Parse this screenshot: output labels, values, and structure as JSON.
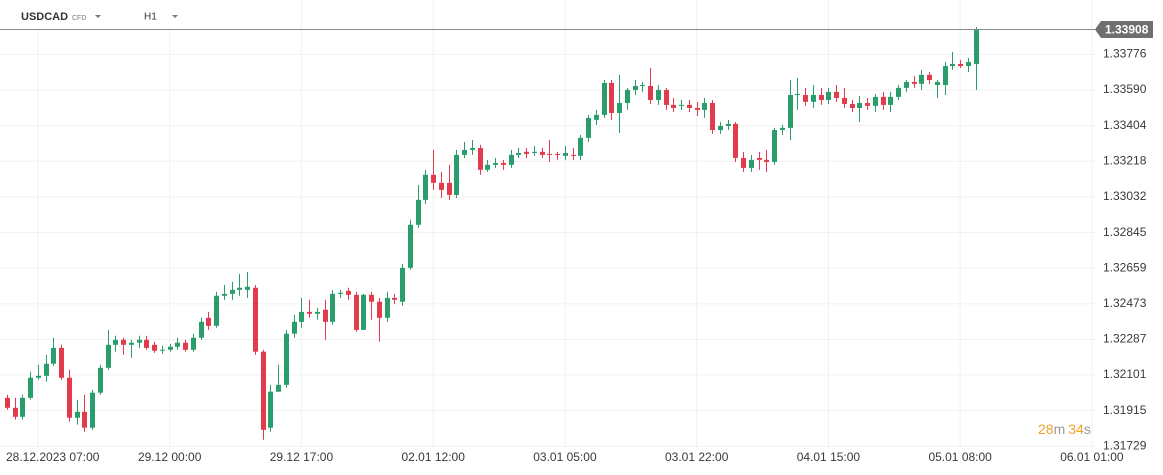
{
  "header": {
    "symbol": "USDCAD",
    "instrument_type": "CFD",
    "timeframe": "H1"
  },
  "countdown": {
    "minutes": "28",
    "minutes_unit": "m",
    "seconds": "34",
    "seconds_unit": "s"
  },
  "chart_data": {
    "type": "candlestick",
    "up_color": "#2a9d6c",
    "down_color": "#e23c4c",
    "grid": true,
    "last_price": 1.33908,
    "ylim": [
      1.3172,
      1.3406
    ],
    "yticks": [
      1.33776,
      {
        "value": 1.3359,
        "label": "1.33590"
      },
      1.33404,
      1.33218,
      1.33032,
      1.32845,
      1.32659,
      1.32473,
      1.32287,
      1.32101,
      1.31915,
      1.31729
    ],
    "xlim": [
      -0.9,
      140.4
    ],
    "xticks": [
      {
        "value": 4,
        "label": "28.12.2023  07:00"
      },
      {
        "value": 21,
        "label": "29.12  00:00"
      },
      {
        "value": 38,
        "label": "29.12  17:00"
      },
      {
        "value": 55,
        "label": "02.01  12:00"
      },
      {
        "value": 72,
        "label": "03.01  05:00"
      },
      {
        "value": 89,
        "label": "03.01  22:00"
      },
      {
        "value": 106,
        "label": "04.01  15:00"
      },
      {
        "value": 123,
        "label": "05.01  08:00"
      },
      {
        "value": 140,
        "label": "06.01  01:00"
      }
    ],
    "open": [
      1.31982,
      1.3193,
      1.31883,
      1.31982,
      1.32087,
      1.32097,
      1.3216,
      1.32243,
      1.32087,
      1.31878,
      1.31909,
      1.31826,
      1.32009,
      1.32139,
      1.32259,
      1.32285,
      1.32259,
      1.3227,
      1.32285,
      1.32259,
      1.32228,
      1.32233,
      1.32249,
      1.3227,
      1.32233,
      1.32296,
      1.324,
      1.32358,
      1.32515,
      1.32525,
      1.32546,
      1.32546,
      1.32557,
      1.32223,
      1.31826,
      1.32014,
      1.3205,
      1.32317,
      1.32379,
      1.32431,
      1.32421,
      1.32442,
      1.32379,
      1.32525,
      1.32541,
      1.3252,
      1.32337,
      1.3252,
      1.32484,
      1.324,
      1.32504,
      1.32484,
      1.32661,
      1.32886,
      1.33016,
      1.33147,
      1.33105,
      1.33105,
      1.33042,
      1.33251,
      1.33277,
      1.33287,
      1.33173,
      1.33199,
      1.33209,
      1.33199,
      1.33251,
      1.33267,
      1.33261,
      1.33267,
      1.33256,
      1.33256,
      1.33246,
      1.33251,
      1.33246,
      1.3334,
      1.33434,
      1.3346,
      1.33627,
      1.3347,
      1.33522,
      1.3359,
      1.33611,
      1.33611,
      1.33538,
      1.3359,
      1.33512,
      1.33507,
      1.33512,
      1.33496,
      1.33486,
      1.33522,
      1.33381,
      1.33402,
      1.33413,
      1.33235,
      1.33183,
      1.33235,
      1.33225,
      1.33214,
      1.33381,
      1.33392,
      1.33564,
      1.33564,
      1.33528,
      1.33564,
      1.33538,
      1.3358,
      1.33548,
      1.33517,
      1.33496,
      1.33522,
      1.33507,
      1.33554,
      1.33512,
      1.33554,
      1.33601,
      1.33632,
      1.33622,
      1.33669,
      1.33616,
      1.33616,
      1.33715,
      1.33726,
      1.33715,
      1.33726
    ],
    "high": [
      1.31998,
      1.31982,
      1.31998,
      1.32118,
      1.32155,
      1.32207,
      1.32296,
      1.32259,
      1.32129,
      1.31972,
      1.31998,
      1.32024,
      1.32155,
      1.32337,
      1.32306,
      1.32296,
      1.32285,
      1.32306,
      1.32306,
      1.32275,
      1.32254,
      1.32264,
      1.32296,
      1.32285,
      1.32317,
      1.324,
      1.32431,
      1.32536,
      1.32572,
      1.32588,
      1.3263,
      1.3264,
      1.32572,
      1.32233,
      1.3205,
      1.32155,
      1.32337,
      1.32416,
      1.32504,
      1.32494,
      1.32452,
      1.32494,
      1.32546,
      1.32546,
      1.32557,
      1.32536,
      1.32525,
      1.32536,
      1.32504,
      1.32536,
      1.32525,
      1.32682,
      1.32912,
      1.33094,
      1.33173,
      1.33277,
      1.33162,
      1.33199,
      1.33277,
      1.33319,
      1.33329,
      1.33303,
      1.33225,
      1.33235,
      1.33225,
      1.33277,
      1.33287,
      1.33287,
      1.33298,
      1.33287,
      1.33329,
      1.33267,
      1.33298,
      1.33287,
      1.33355,
      1.3346,
      1.33486,
      1.33642,
      1.33642,
      1.33669,
      1.33601,
      1.33642,
      1.33632,
      1.33705,
      1.33616,
      1.33601,
      1.33548,
      1.33538,
      1.33538,
      1.33528,
      1.33548,
      1.33538,
      1.33423,
      1.33434,
      1.33423,
      1.33267,
      1.33251,
      1.33267,
      1.33277,
      1.33392,
      1.33408,
      1.33642,
      1.33653,
      1.33601,
      1.33616,
      1.33601,
      1.33601,
      1.33616,
      1.33601,
      1.33538,
      1.33559,
      1.33548,
      1.33569,
      1.3358,
      1.3358,
      1.33616,
      1.33642,
      1.33663,
      1.33695,
      1.33684,
      1.33642,
      1.33736,
      1.33789,
      1.33747,
      1.33757,
      1.33919
    ],
    "low": [
      1.3192,
      1.31868,
      1.31868,
      1.31972,
      1.32076,
      1.32066,
      1.32149,
      1.32076,
      1.31857,
      1.31842,
      1.31805,
      1.31815,
      1.31998,
      1.32129,
      1.32223,
      1.32207,
      1.32191,
      1.32243,
      1.32233,
      1.32217,
      1.32212,
      1.32223,
      1.32233,
      1.32223,
      1.32223,
      1.32285,
      1.32337,
      1.32348,
      1.32494,
      1.32494,
      1.32515,
      1.32504,
      1.32207,
      1.31763,
      1.31805,
      1.32014,
      1.32035,
      1.32296,
      1.32348,
      1.324,
      1.3239,
      1.32285,
      1.32364,
      1.32504,
      1.32494,
      1.32327,
      1.32337,
      1.3239,
      1.32275,
      1.32379,
      1.32473,
      1.32463,
      1.32651,
      1.3287,
      1.32995,
      1.33068,
      1.33026,
      1.33016,
      1.33026,
      1.33235,
      1.33251,
      1.33147,
      1.33162,
      1.33183,
      1.33173,
      1.33183,
      1.33235,
      1.33235,
      1.33246,
      1.33235,
      1.33214,
      1.33225,
      1.33225,
      1.33225,
      1.33225,
      1.33319,
      1.33408,
      1.33444,
      1.33434,
      1.33366,
      1.33486,
      1.33564,
      1.3358,
      1.33517,
      1.33512,
      1.33486,
      1.33475,
      1.33486,
      1.33475,
      1.33454,
      1.33444,
      1.33361,
      1.33361,
      1.33381,
      1.33214,
      1.33162,
      1.33162,
      1.33173,
      1.33162,
      1.33199,
      1.33355,
      1.33329,
      1.33486,
      1.33507,
      1.33496,
      1.33512,
      1.33517,
      1.33528,
      1.33496,
      1.33475,
      1.33423,
      1.33486,
      1.33475,
      1.33486,
      1.33475,
      1.33538,
      1.3358,
      1.33601,
      1.3359,
      1.33622,
      1.33548,
      1.33564,
      1.33695,
      1.33705,
      1.33684,
      1.3359
    ],
    "close": [
      1.3193,
      1.31883,
      1.31982,
      1.32087,
      1.32097,
      1.3216,
      1.32243,
      1.32087,
      1.31878,
      1.31909,
      1.31826,
      1.32009,
      1.32139,
      1.32259,
      1.32285,
      1.32259,
      1.3227,
      1.32285,
      1.32243,
      1.32228,
      1.32233,
      1.32249,
      1.3227,
      1.32233,
      1.32296,
      1.32379,
      1.32358,
      1.32515,
      1.32525,
      1.32546,
      1.32557,
      1.32562,
      1.32223,
      1.31815,
      1.32014,
      1.3205,
      1.32317,
      1.32379,
      1.32431,
      1.32421,
      1.32431,
      1.32379,
      1.32525,
      1.32531,
      1.3252,
      1.32337,
      1.3252,
      1.32484,
      1.324,
      1.32504,
      1.32494,
      1.32661,
      1.32886,
      1.33016,
      1.33147,
      1.33105,
      1.33068,
      1.33042,
      1.33251,
      1.33277,
      1.33287,
      1.33173,
      1.33199,
      1.33209,
      1.33199,
      1.33251,
      1.33261,
      1.33256,
      1.33267,
      1.33251,
      1.33251,
      1.33251,
      1.33261,
      1.33246,
      1.3334,
      1.33444,
      1.3346,
      1.33627,
      1.3347,
      1.33522,
      1.3359,
      1.33611,
      1.33616,
      1.33538,
      1.3359,
      1.33512,
      1.33496,
      1.33512,
      1.33496,
      1.33486,
      1.33522,
      1.33381,
      1.33402,
      1.33413,
      1.33235,
      1.33183,
      1.33225,
      1.33225,
      1.33214,
      1.33381,
      1.33392,
      1.33564,
      1.33569,
      1.33528,
      1.33564,
      1.33538,
      1.3358,
      1.33548,
      1.33517,
      1.33496,
      1.33522,
      1.33507,
      1.33554,
      1.33512,
      1.33554,
      1.33601,
      1.33632,
      1.33622,
      1.33669,
      1.33642,
      1.33632,
      1.33715,
      1.33726,
      1.33715,
      1.33736,
      1.33908
    ]
  }
}
